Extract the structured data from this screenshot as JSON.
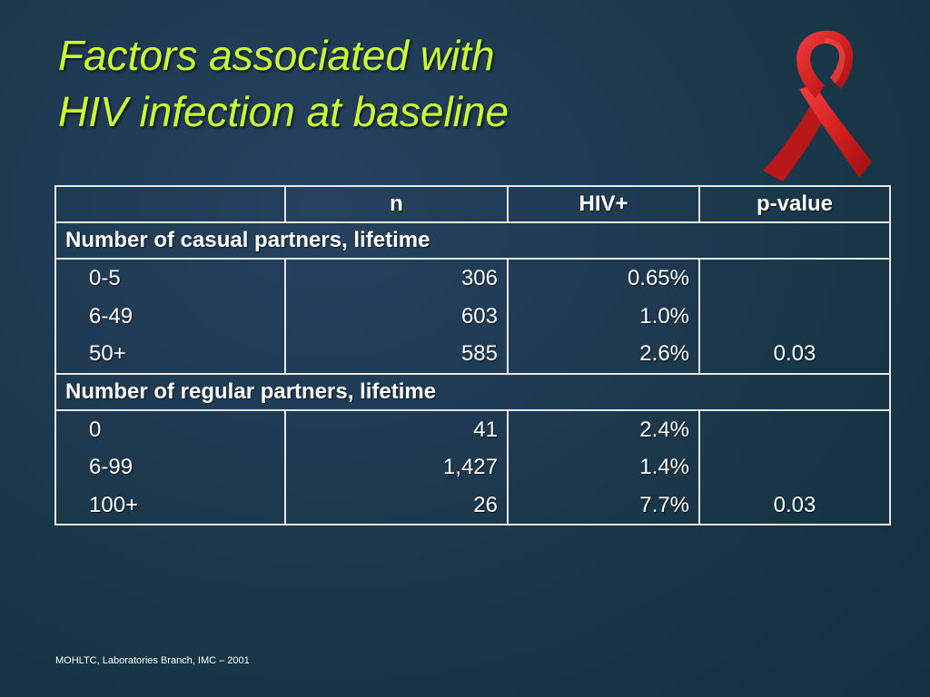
{
  "slide": {
    "title_line1": "Factors associated with",
    "title_line2": "HIV infection at baseline",
    "footer": "MOHLTC, Laboratories Branch, IMC – 2001",
    "colors": {
      "title": "#ccff33",
      "ribbon": "#d42020",
      "background": "#1b3a4d"
    },
    "logo": "red-awareness-ribbon"
  },
  "table": {
    "headers": [
      "",
      "n",
      "HIV+",
      "p-value"
    ],
    "sections": [
      {
        "label": "Number of casual partners, lifetime",
        "rows": [
          {
            "category": "0-5",
            "n": "306",
            "hiv": "0.65%",
            "p": ""
          },
          {
            "category": "6-49",
            "n": "603",
            "hiv": "1.0%",
            "p": ""
          },
          {
            "category": "50+",
            "n": "585",
            "hiv": "2.6%",
            "p": "0.03"
          }
        ]
      },
      {
        "label": "Number of regular partners, lifetime",
        "rows": [
          {
            "category": "0",
            "n": "41",
            "hiv": "2.4%",
            "p": ""
          },
          {
            "category": "6-99",
            "n": "1,427",
            "hiv": "1.4%",
            "p": ""
          },
          {
            "category": "100+",
            "n": "26",
            "hiv": "7.7%",
            "p": "0.03"
          }
        ]
      }
    ]
  }
}
